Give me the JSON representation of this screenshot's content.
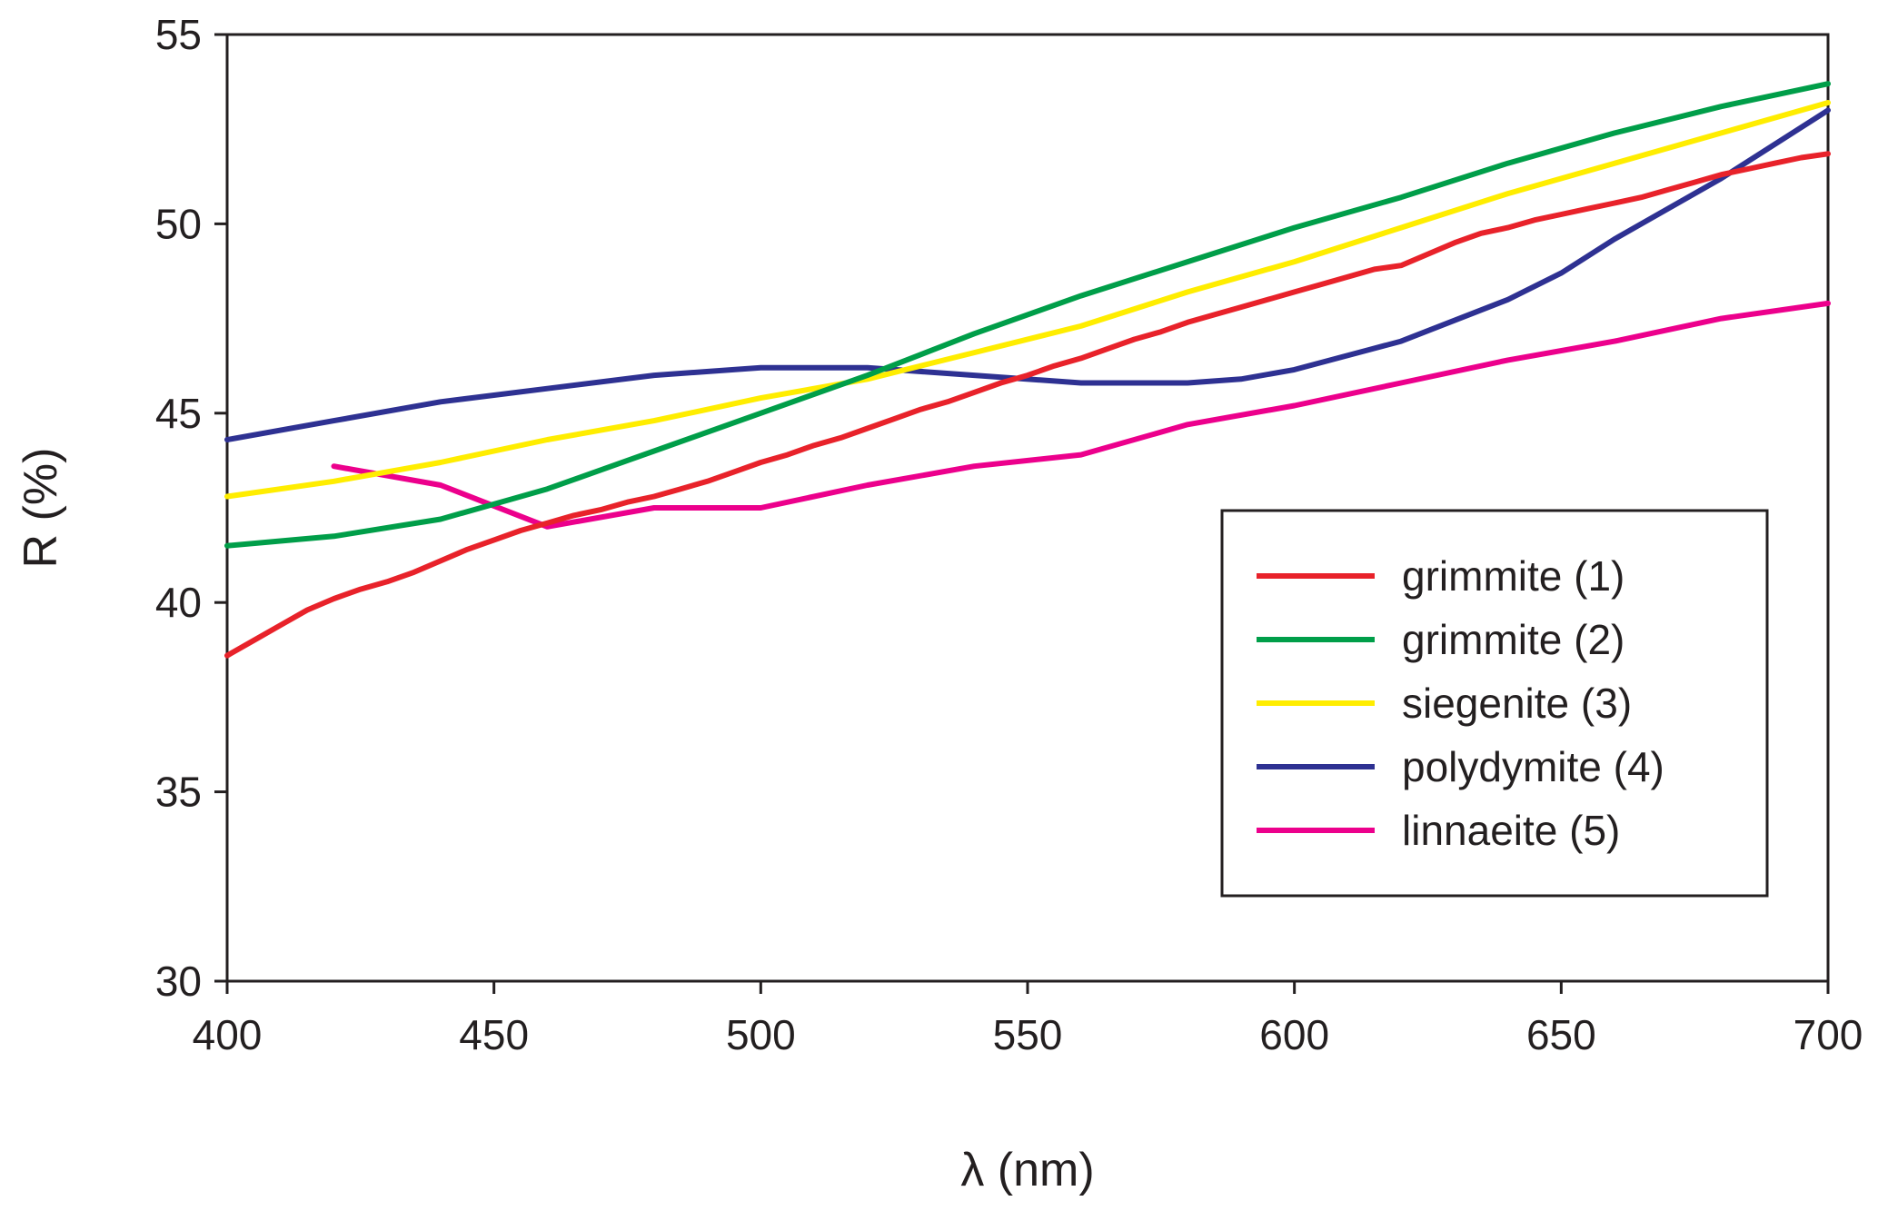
{
  "chart_data": {
    "type": "line",
    "title": "",
    "xlabel": "λ (nm)",
    "ylabel": "R (%)",
    "xlim": [
      400,
      700
    ],
    "ylim": [
      30,
      55
    ],
    "xticks": [
      400,
      450,
      500,
      550,
      600,
      650,
      700
    ],
    "yticks": [
      30,
      35,
      40,
      45,
      50,
      55
    ],
    "xtick_labels": [
      "400",
      "450",
      "500",
      "550",
      "600",
      "650",
      "700"
    ],
    "ytick_labels": [
      "30",
      "35",
      "40",
      "45",
      "50",
      "55"
    ],
    "grid": false,
    "legend_position": "center-right",
    "series": [
      {
        "name": "grimmite (1)",
        "color": "#e8222a",
        "x": [
          400,
          405,
          410,
          415,
          420,
          425,
          430,
          435,
          440,
          445,
          450,
          455,
          460,
          465,
          470,
          475,
          480,
          485,
          490,
          495,
          500,
          505,
          510,
          515,
          520,
          525,
          530,
          535,
          540,
          545,
          550,
          555,
          560,
          565,
          570,
          575,
          580,
          585,
          590,
          595,
          600,
          605,
          610,
          615,
          620,
          625,
          630,
          635,
          640,
          645,
          650,
          655,
          660,
          665,
          670,
          675,
          680,
          685,
          690,
          695,
          700
        ],
        "y": [
          38.6,
          39.0,
          39.4,
          39.8,
          40.1,
          40.35,
          40.55,
          40.8,
          41.1,
          41.4,
          41.65,
          41.9,
          42.1,
          42.3,
          42.45,
          42.65,
          42.8,
          43.0,
          43.2,
          43.45,
          43.7,
          43.9,
          44.15,
          44.35,
          44.6,
          44.85,
          45.1,
          45.3,
          45.55,
          45.8,
          46.0,
          46.25,
          46.45,
          46.7,
          46.95,
          47.15,
          47.4,
          47.6,
          47.8,
          48.0,
          48.2,
          48.4,
          48.6,
          48.8,
          48.9,
          49.2,
          49.5,
          49.75,
          49.9,
          50.1,
          50.25,
          50.4,
          50.55,
          50.7,
          50.9,
          51.1,
          51.3,
          51.45,
          51.6,
          51.75,
          51.85
        ]
      },
      {
        "name": "grimmite (2)",
        "color": "#009e49",
        "x": [
          400,
          420,
          440,
          460,
          480,
          500,
          520,
          540,
          560,
          580,
          600,
          620,
          640,
          660,
          680,
          700
        ],
        "y": [
          41.5,
          41.75,
          42.2,
          43.0,
          44.0,
          45.0,
          46.0,
          47.1,
          48.1,
          49.0,
          49.9,
          50.7,
          51.6,
          52.4,
          53.1,
          53.7
        ]
      },
      {
        "name": "siegenite (3)",
        "color": "#ffed00",
        "x": [
          400,
          420,
          440,
          460,
          480,
          500,
          520,
          540,
          560,
          580,
          600,
          620,
          640,
          660,
          680,
          700
        ],
        "y": [
          42.8,
          43.2,
          43.7,
          44.3,
          44.8,
          45.4,
          45.9,
          46.6,
          47.3,
          48.2,
          49.0,
          49.9,
          50.8,
          51.6,
          52.4,
          53.2
        ]
      },
      {
        "name": "polydymite (4)",
        "color": "#2e3192",
        "x": [
          400,
          420,
          440,
          460,
          480,
          500,
          520,
          540,
          560,
          580,
          590,
          600,
          620,
          640,
          650,
          660,
          680,
          700
        ],
        "y": [
          44.3,
          44.8,
          45.3,
          45.65,
          46.0,
          46.2,
          46.2,
          46.0,
          45.8,
          45.8,
          45.9,
          46.15,
          46.9,
          48.0,
          48.7,
          49.6,
          51.2,
          53.0
        ]
      },
      {
        "name": "linnaeite (5)",
        "color": "#ec008c",
        "x": [
          420,
          440,
          460,
          480,
          500,
          520,
          540,
          560,
          580,
          600,
          620,
          640,
          660,
          680,
          700
        ],
        "y": [
          43.6,
          43.1,
          42.0,
          42.5,
          42.5,
          43.1,
          43.6,
          43.9,
          44.7,
          45.2,
          45.8,
          46.4,
          46.9,
          47.5,
          47.9
        ]
      }
    ]
  }
}
